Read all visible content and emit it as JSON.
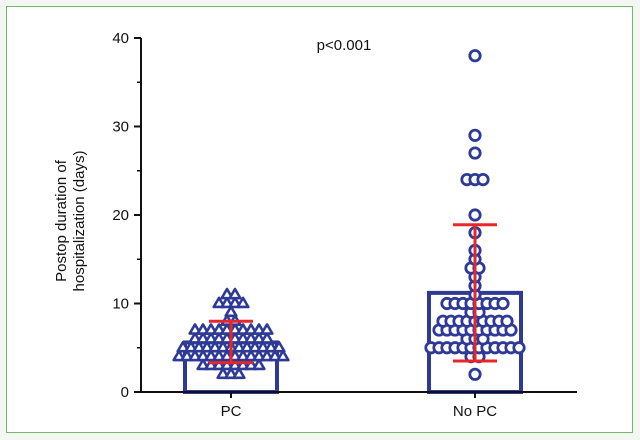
{
  "chart_data": {
    "type": "scatter",
    "subtype": "bar with individual points and mean ± SD error bars",
    "title": "",
    "annotation": "p<0.001",
    "xlabel": "",
    "ylabel_line1": "Postop duration of",
    "ylabel_line2": "hospitalization (days)",
    "categories": [
      "PC",
      "No PC"
    ],
    "ylim": [
      0,
      40
    ],
    "yticks": [
      0,
      10,
      20,
      30,
      40
    ],
    "yticks_minor": [
      5,
      15,
      25,
      35
    ],
    "grid": false,
    "colors": {
      "bars": "#2e3a96",
      "points": "#2e3a96",
      "error_bars": "#e8262a",
      "frame": "#79b46e",
      "page": "#f3f7f2"
    },
    "series": [
      {
        "category": "PC",
        "marker": "triangle",
        "bar_value": 5.6,
        "mean": 5.6,
        "error_low": 3.3,
        "error_high": 8.0,
        "points": [
          2,
          2,
          2,
          3,
          3,
          3,
          3,
          3,
          3,
          3,
          3,
          4,
          4,
          4,
          4,
          4,
          4,
          4,
          4,
          4,
          4,
          4,
          4,
          4,
          4,
          5,
          5,
          5,
          5,
          5,
          5,
          5,
          5,
          5,
          5,
          5,
          5,
          5,
          6,
          6,
          6,
          6,
          6,
          6,
          6,
          6,
          6,
          6,
          7,
          7,
          7,
          7,
          7,
          7,
          7,
          7,
          7,
          7,
          8,
          8,
          9,
          10,
          10,
          10,
          10,
          11,
          11
        ]
      },
      {
        "category": "No PC",
        "marker": "circle",
        "bar_value": 11.2,
        "mean": 11.2,
        "error_low": 3.5,
        "error_high": 18.9,
        "points": [
          2,
          4,
          4,
          5,
          5,
          5,
          5,
          5,
          5,
          5,
          5,
          5,
          5,
          5,
          5,
          6,
          6,
          6,
          7,
          7,
          7,
          7,
          7,
          7,
          7,
          7,
          7,
          7,
          8,
          8,
          8,
          8,
          8,
          8,
          8,
          8,
          8,
          9,
          9,
          10,
          10,
          10,
          10,
          10,
          10,
          10,
          10,
          11,
          12,
          13,
          14,
          14,
          15,
          16,
          18,
          20,
          24,
          24,
          24,
          27,
          29,
          38
        ]
      }
    ]
  }
}
